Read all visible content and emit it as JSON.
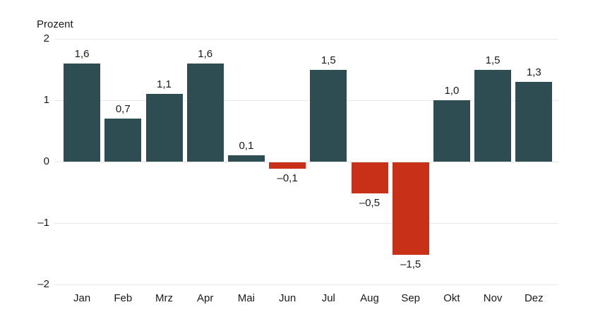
{
  "chart_data": {
    "type": "bar",
    "title": "",
    "ylabel": "Prozent",
    "xlabel": "",
    "categories": [
      "Jan",
      "Feb",
      "Mrz",
      "Apr",
      "Mai",
      "Jun",
      "Jul",
      "Aug",
      "Sep",
      "Okt",
      "Nov",
      "Dez"
    ],
    "values": [
      1.6,
      0.7,
      1.1,
      1.6,
      0.1,
      -0.1,
      1.5,
      -0.5,
      -1.5,
      1.0,
      1.5,
      1.3
    ],
    "value_labels": [
      "1,6",
      "0,7",
      "1,1",
      "1,6",
      "0,1",
      "–0,1",
      "1,5",
      "–0,5",
      "–1,5",
      "1,0",
      "1,5",
      "1,3"
    ],
    "yticks": [
      2,
      1,
      0,
      -1,
      -2
    ],
    "ytick_labels": [
      "2",
      "1",
      "0",
      "–1",
      "–2"
    ],
    "ylim": [
      -2,
      2
    ],
    "grid": true,
    "legend": "none",
    "colors": {
      "positive_bar": "#2e4d52",
      "negative_bar": "#c93018",
      "gridline": "#e8e8e8",
      "text": "#1a1a1a",
      "background": "#ffffff"
    }
  }
}
